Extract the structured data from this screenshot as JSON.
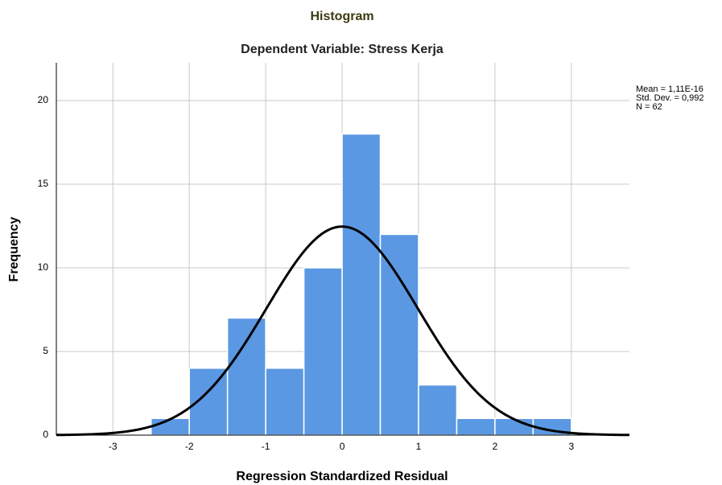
{
  "chart_data": {
    "type": "histogram",
    "title": "Histogram",
    "subtitle": "Dependent Variable: Stress Kerja",
    "x_label": "Regression Standardized Residual",
    "y_label": "Frequency",
    "bins": [
      -2.5,
      -2,
      -1.5,
      -1,
      -0.5,
      0,
      0.5,
      1,
      1.5,
      2,
      2.5,
      3
    ],
    "values": [
      1,
      4,
      7,
      4,
      10,
      18,
      12,
      3,
      1,
      1,
      1
    ],
    "color": "#5b98e3",
    "curve_color": "#000000",
    "stats": [
      {
        "value": 1.11e-16,
        "label": "Mean = 1,11E-16"
      },
      {
        "value": 0.992,
        "label": "Std. Dev. = 0,992"
      },
      {
        "value": 62,
        "label": "N = 62"
      }
    ],
    "xlim": [
      -3.74,
      3.76
    ],
    "xticks": [
      -3,
      -2,
      -1,
      0,
      1,
      2,
      3
    ],
    "ylim": [
      0,
      22.26
    ],
    "yticks": [
      0,
      5,
      10,
      15,
      20
    ],
    "grid": true
  }
}
